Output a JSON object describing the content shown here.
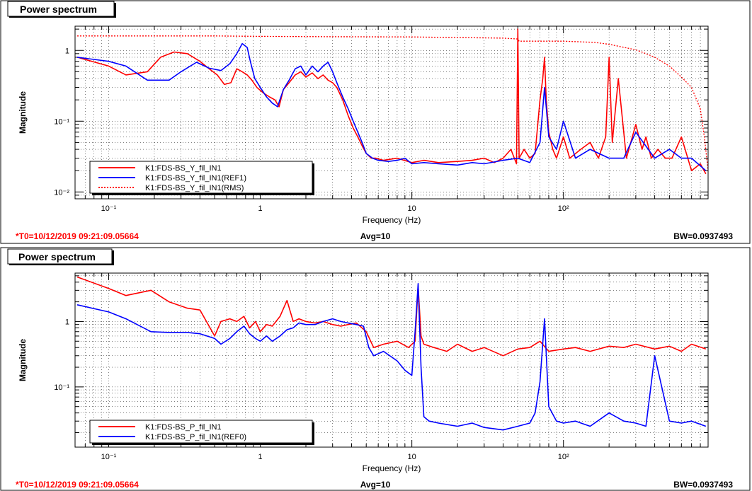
{
  "chart_data": [
    {
      "type": "line",
      "title": "Power spectrum",
      "xlabel": "Frequency (Hz)",
      "ylabel": "Magnitude",
      "xscale": "log",
      "yscale": "log",
      "xlim": [
        0.06,
        900
      ],
      "ylim": [
        0.008,
        2.2
      ],
      "grid": true,
      "legend": "bottom-left",
      "x_ticks": [
        {
          "value": 0.1,
          "label": "10⁻¹"
        },
        {
          "value": 1,
          "label": "1"
        },
        {
          "value": 10,
          "label": "10"
        },
        {
          "value": 100,
          "label": "10²"
        }
      ],
      "y_ticks": [
        {
          "value": 0.01,
          "label": "10⁻²"
        },
        {
          "value": 0.1,
          "label": "10⁻¹"
        },
        {
          "value": 1,
          "label": "1"
        }
      ],
      "series": [
        {
          "name": "K1:FDS-BS_Y_fil_IN1",
          "color": "#ff0000",
          "style": "solid",
          "x": [
            0.062,
            0.1,
            0.13,
            0.18,
            0.22,
            0.27,
            0.33,
            0.4,
            0.46,
            0.52,
            0.58,
            0.64,
            0.7,
            0.76,
            0.82,
            0.88,
            0.95,
            1.05,
            1.15,
            1.25,
            1.33,
            1.42,
            1.55,
            1.7,
            1.85,
            2.0,
            2.2,
            2.4,
            2.6,
            2.8,
            3.0,
            3.2,
            3.5,
            3.8,
            4.1,
            4.4,
            4.7,
            5.0,
            5.4,
            5.8,
            6.5,
            8,
            10,
            12,
            15,
            20,
            25,
            30,
            35,
            40,
            45,
            49,
            50,
            51,
            55,
            60,
            65,
            70,
            73,
            75,
            77,
            80,
            85,
            90,
            100,
            110,
            130,
            150,
            170,
            190,
            200,
            210,
            230,
            260,
            300,
            330,
            350,
            380,
            420,
            470,
            520,
            600,
            700,
            800,
            870
          ],
          "y": [
            0.8,
            0.6,
            0.45,
            0.5,
            0.8,
            0.95,
            0.9,
            0.7,
            0.55,
            0.45,
            0.33,
            0.35,
            0.55,
            0.5,
            0.45,
            0.38,
            0.3,
            0.25,
            0.22,
            0.2,
            0.16,
            0.28,
            0.35,
            0.45,
            0.5,
            0.42,
            0.48,
            0.4,
            0.45,
            0.38,
            0.35,
            0.3,
            0.2,
            0.12,
            0.08,
            0.06,
            0.045,
            0.035,
            0.03,
            0.03,
            0.028,
            0.03,
            0.026,
            0.028,
            0.026,
            0.027,
            0.028,
            0.03,
            0.026,
            0.03,
            0.04,
            0.025,
            2.0,
            0.03,
            0.04,
            0.03,
            0.035,
            0.2,
            0.4,
            0.8,
            0.2,
            0.07,
            0.04,
            0.03,
            0.06,
            0.03,
            0.04,
            0.05,
            0.03,
            0.06,
            0.8,
            0.05,
            0.4,
            0.03,
            0.09,
            0.04,
            0.06,
            0.03,
            0.04,
            0.03,
            0.03,
            0.06,
            0.02,
            0.025,
            0.018
          ]
        },
        {
          "name": "K1:FDS-BS_Y_fil_IN1(REF1)",
          "color": "#0000ff",
          "style": "solid",
          "x": [
            0.062,
            0.1,
            0.13,
            0.18,
            0.25,
            0.3,
            0.38,
            0.46,
            0.55,
            0.63,
            0.7,
            0.76,
            0.82,
            0.86,
            0.92,
            1.0,
            1.1,
            1.2,
            1.3,
            1.42,
            1.55,
            1.7,
            1.85,
            2.0,
            2.2,
            2.4,
            2.6,
            2.8,
            3.0,
            3.2,
            3.5,
            3.8,
            4.1,
            4.4,
            4.7,
            5.0,
            5.5,
            6,
            7,
            8,
            9,
            10,
            12,
            15,
            20,
            25,
            30,
            40,
            50,
            60,
            70,
            75,
            80,
            90,
            100,
            120,
            150,
            200,
            250,
            300,
            400,
            500,
            600,
            700,
            870
          ],
          "y": [
            0.8,
            0.7,
            0.6,
            0.38,
            0.38,
            0.5,
            0.68,
            0.56,
            0.52,
            0.65,
            0.9,
            1.25,
            1.1,
            0.7,
            0.4,
            0.3,
            0.22,
            0.18,
            0.16,
            0.28,
            0.38,
            0.55,
            0.6,
            0.45,
            0.6,
            0.5,
            0.6,
            0.68,
            0.5,
            0.35,
            0.22,
            0.15,
            0.1,
            0.07,
            0.05,
            0.035,
            0.03,
            0.028,
            0.027,
            0.028,
            0.03,
            0.025,
            0.026,
            0.025,
            0.024,
            0.026,
            0.025,
            0.028,
            0.03,
            0.026,
            0.05,
            0.3,
            0.06,
            0.04,
            0.1,
            0.03,
            0.04,
            0.03,
            0.03,
            0.07,
            0.03,
            0.04,
            0.03,
            0.03,
            0.02
          ]
        },
        {
          "name": "K1:FDS-BS_Y_fil_IN1(RMS)",
          "color": "#ff0000",
          "style": "dotted",
          "x": [
            0.062,
            0.5,
            1,
            3,
            10,
            20,
            40,
            50,
            51,
            100,
            160,
            200,
            300,
            350,
            400,
            500,
            600,
            700,
            800,
            850,
            900
          ],
          "y": [
            1.6,
            1.6,
            1.58,
            1.56,
            1.55,
            1.52,
            1.49,
            1.45,
            1.35,
            1.35,
            1.3,
            1.22,
            1.02,
            0.9,
            0.8,
            0.6,
            0.42,
            0.3,
            0.15,
            0.06,
            0.02
          ]
        }
      ]
    },
    {
      "type": "line",
      "title": "Power spectrum",
      "xlabel": "Frequency (Hz)",
      "ylabel": "Magnitude",
      "xscale": "log",
      "yscale": "log",
      "xlim": [
        0.06,
        900
      ],
      "ylim": [
        0.012,
        5.5
      ],
      "grid": true,
      "legend": "bottom-left",
      "x_ticks": [
        {
          "value": 0.1,
          "label": "10⁻¹"
        },
        {
          "value": 1,
          "label": "1"
        },
        {
          "value": 10,
          "label": "10"
        },
        {
          "value": 100,
          "label": "10²"
        }
      ],
      "y_ticks": [
        {
          "value": 0.1,
          "label": "10⁻¹"
        },
        {
          "value": 1,
          "label": "1"
        }
      ],
      "series": [
        {
          "name": "K1:FDS-BS_P_fil_IN1",
          "color": "#ff0000",
          "style": "solid",
          "x": [
            0.062,
            0.1,
            0.13,
            0.19,
            0.25,
            0.33,
            0.4,
            0.5,
            0.55,
            0.63,
            0.7,
            0.78,
            0.85,
            0.93,
            1.0,
            1.1,
            1.2,
            1.35,
            1.5,
            1.65,
            1.8,
            2.0,
            2.3,
            2.6,
            3.0,
            3.4,
            3.8,
            4.3,
            5.0,
            5.6,
            6.5,
            8,
            9.5,
            10.5,
            11,
            11.5,
            12,
            14,
            17,
            20,
            25,
            30,
            40,
            50,
            60,
            70,
            80,
            100,
            120,
            150,
            200,
            250,
            300,
            400,
            500,
            600,
            700,
            870
          ],
          "y": [
            4.8,
            3.2,
            2.5,
            3.0,
            2.0,
            1.6,
            1.5,
            0.6,
            1.0,
            1.1,
            1.0,
            1.2,
            0.8,
            1.0,
            0.7,
            0.9,
            0.85,
            1.2,
            2.1,
            1.0,
            1.1,
            1.0,
            0.95,
            1.0,
            0.9,
            0.85,
            0.9,
            0.95,
            0.7,
            0.4,
            0.45,
            0.5,
            0.4,
            0.5,
            3.5,
            0.6,
            0.45,
            0.4,
            0.35,
            0.45,
            0.35,
            0.4,
            0.3,
            0.38,
            0.4,
            0.5,
            0.35,
            0.38,
            0.4,
            0.35,
            0.42,
            0.4,
            0.45,
            0.38,
            0.42,
            0.35,
            0.45,
            0.38
          ]
        },
        {
          "name": "K1:FDS-BS_P_fil_IN1(REF0)",
          "color": "#0000ff",
          "style": "solid",
          "x": [
            0.062,
            0.1,
            0.13,
            0.19,
            0.25,
            0.33,
            0.4,
            0.5,
            0.55,
            0.63,
            0.7,
            0.78,
            0.85,
            0.93,
            1.0,
            1.1,
            1.2,
            1.35,
            1.5,
            1.65,
            1.8,
            2.0,
            2.3,
            2.6,
            3.0,
            3.4,
            3.8,
            4.3,
            4.8,
            5.2,
            5.6,
            6.5,
            8,
            9,
            10,
            10.5,
            11,
            11.5,
            12,
            13,
            15,
            20,
            25,
            30,
            40,
            50,
            60,
            65,
            70,
            75,
            80,
            90,
            100,
            120,
            150,
            200,
            250,
            300,
            350,
            400,
            500,
            600,
            700,
            870
          ],
          "y": [
            1.8,
            1.4,
            1.1,
            0.7,
            0.68,
            0.68,
            0.65,
            0.55,
            0.45,
            0.55,
            0.7,
            0.85,
            0.65,
            0.55,
            0.5,
            0.6,
            0.5,
            0.6,
            0.75,
            0.8,
            0.95,
            0.9,
            0.9,
            1.0,
            1.1,
            1.0,
            0.95,
            0.9,
            0.85,
            0.4,
            0.3,
            0.35,
            0.25,
            0.18,
            0.15,
            0.7,
            3.8,
            0.2,
            0.035,
            0.03,
            0.028,
            0.025,
            0.028,
            0.024,
            0.022,
            0.025,
            0.028,
            0.04,
            0.12,
            1.1,
            0.05,
            0.03,
            0.028,
            0.03,
            0.025,
            0.04,
            0.03,
            0.028,
            0.025,
            0.3,
            0.03,
            0.028,
            0.03,
            0.025
          ]
        }
      ]
    }
  ],
  "panels": [
    {
      "header": "Power spectrum",
      "t0": "*T0=10/12/2019 09:21:09.05664",
      "avg": "Avg=10",
      "bw": "BW=0.0937493"
    },
    {
      "header": "Power spectrum",
      "t0": "*T0=10/12/2019 09:21:09.05664",
      "avg": "Avg=10",
      "bw": "BW=0.0937493"
    }
  ],
  "colors": {
    "red": "#ff0000",
    "blue": "#0000ff",
    "footer_red": "#ff0000"
  }
}
